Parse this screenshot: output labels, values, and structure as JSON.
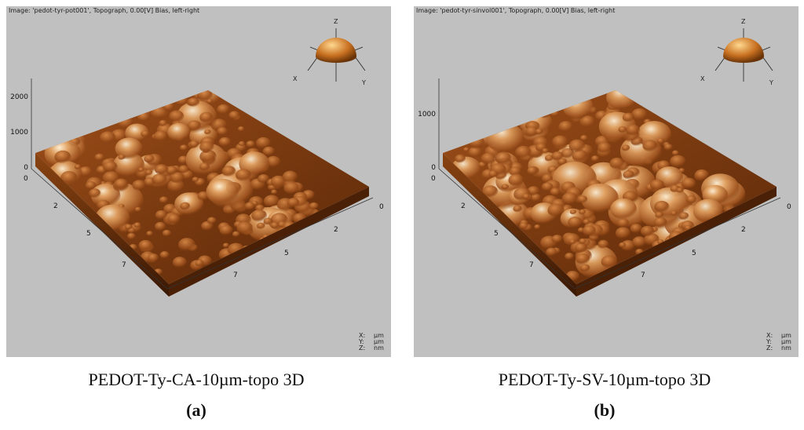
{
  "panels": [
    {
      "header": "Image: 'pedot-tyr-pot001', Topograph, 0.00[V] Bias, left-right",
      "z_ticks": [
        "2000",
        "1000",
        "0"
      ],
      "left_ticks": [
        "0",
        "2",
        "5",
        "7"
      ],
      "right_ticks": [
        "0",
        "2",
        "5",
        "7"
      ],
      "axes": {
        "x": "X",
        "y": "Y",
        "z": "Z"
      },
      "units": [
        [
          "X:",
          "µm"
        ],
        [
          "Y:",
          "µm"
        ],
        [
          "Z:",
          "nm"
        ]
      ],
      "caption": "PEDOT-Ty-CA-10µm-topo 3D",
      "label": "(a)"
    },
    {
      "header": "Image: 'pedot-tyr-sinvol001', Topograph, 0.00[V] Bias, left-right",
      "z_ticks": [
        "1000",
        "0"
      ],
      "left_ticks": [
        "0",
        "2",
        "5",
        "7"
      ],
      "right_ticks": [
        "0",
        "2",
        "5",
        "7"
      ],
      "axes": {
        "x": "X",
        "y": "Y",
        "z": "Z"
      },
      "units": [
        [
          "X:",
          "µm"
        ],
        [
          "Y:",
          "µm"
        ],
        [
          "Z:",
          "nm"
        ]
      ],
      "caption": "PEDOT-Ty-SV-10µm-topo 3D",
      "label": "(b)"
    }
  ]
}
